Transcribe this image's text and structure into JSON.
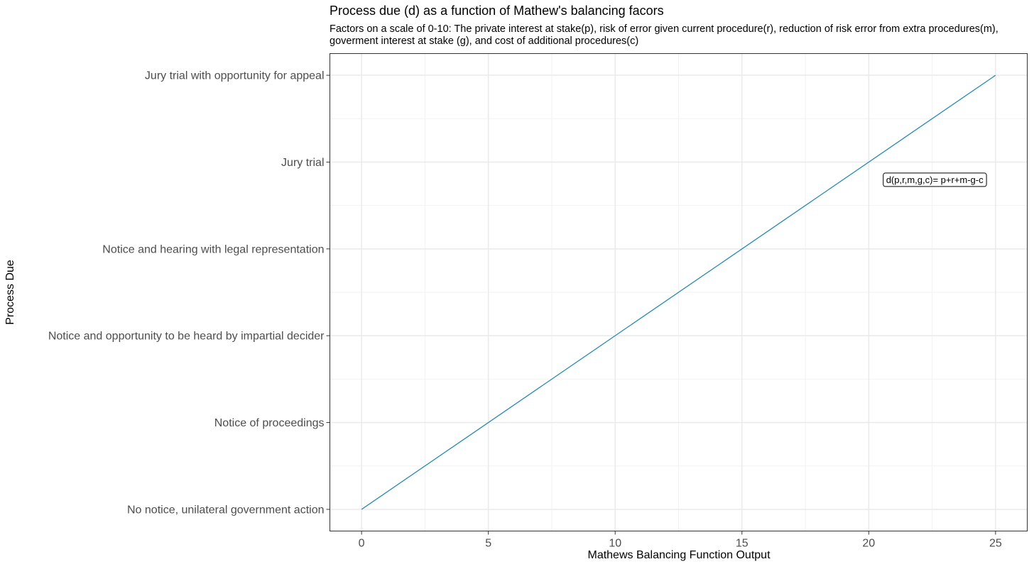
{
  "chart_data": {
    "type": "line",
    "title": "Process due (d) as a function of Mathew's balancing facors",
    "subtitle": [
      "Factors on a scale of 0-10: The private interest at stake(p), risk of error given current procedure(r), reduction of risk error from extra procedures(m),",
      "goverment interest at stake (g), and cost of additional procedures(c)"
    ],
    "xlabel": "Mathews Balancing Function Output",
    "ylabel": "Process Due",
    "xlim": [
      -1.25,
      26.25
    ],
    "ylim": [
      0.75,
      6.25
    ],
    "x_ticks": [
      0,
      5,
      10,
      15,
      20,
      25
    ],
    "y_ticks": [
      {
        "value": 1,
        "label": "No notice, unilateral government action"
      },
      {
        "value": 2,
        "label": "Notice of proceedings"
      },
      {
        "value": 3,
        "label": "Notice and opportunity to be heard by impartial decider"
      },
      {
        "value": 4,
        "label": "Notice and hearing with legal representation"
      },
      {
        "value": 5,
        "label": "Jury trial"
      },
      {
        "value": 6,
        "label": "Jury trial with opportunity for appeal"
      }
    ],
    "grid": true,
    "series": [
      {
        "color": "#2a8cb0",
        "x": [
          0,
          25
        ],
        "y": [
          1,
          6
        ]
      }
    ],
    "annotations": [
      {
        "text": "d(p,r,m,g,c)= p+r+m-g-c",
        "x": 22.6,
        "y": 4.8
      }
    ]
  }
}
